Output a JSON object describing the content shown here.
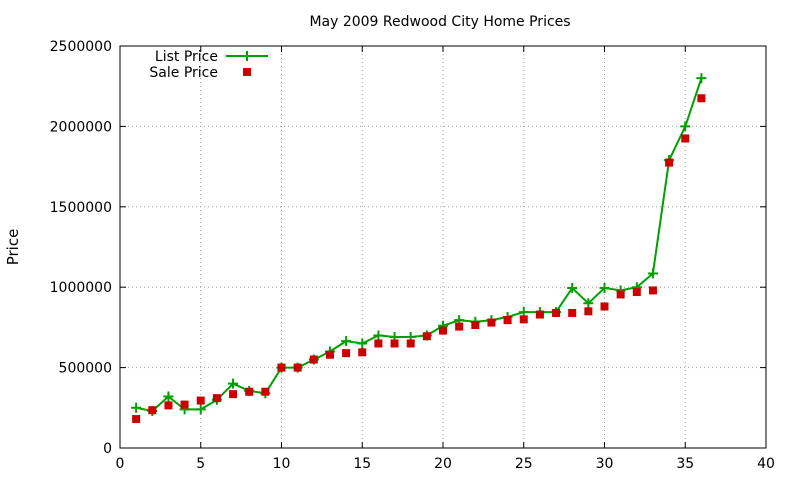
{
  "chart_data": {
    "type": "line",
    "title": "May 2009 Redwood City Home Prices",
    "xlabel": "",
    "ylabel": "Price",
    "xlim": [
      0,
      40
    ],
    "ylim": [
      0,
      2500000
    ],
    "x_ticks": [
      0,
      5,
      10,
      15,
      20,
      25,
      30,
      35,
      40
    ],
    "y_ticks": [
      0,
      500000,
      1000000,
      1500000,
      2000000,
      2500000
    ],
    "grid": true,
    "legend_position": "top-left",
    "series": [
      {
        "name": "List Price",
        "style": "line-with-plus-markers",
        "color": "#00a000",
        "x": [
          1,
          2,
          3,
          4,
          5,
          6,
          7,
          8,
          9,
          10,
          11,
          12,
          13,
          14,
          15,
          16,
          17,
          18,
          19,
          20,
          21,
          22,
          23,
          24,
          25,
          26,
          27,
          28,
          29,
          30,
          31,
          32,
          33,
          34,
          35,
          36
        ],
        "values": [
          250000,
          230000,
          320000,
          240000,
          240000,
          300000,
          400000,
          355000,
          340000,
          500000,
          500000,
          550000,
          600000,
          665000,
          650000,
          700000,
          690000,
          690000,
          700000,
          760000,
          795000,
          785000,
          795000,
          815000,
          845000,
          845000,
          845000,
          995000,
          900000,
          995000,
          980000,
          1000000,
          1085000,
          1790000,
          2000000,
          2300000
        ]
      },
      {
        "name": "Sale Price",
        "style": "square-markers",
        "color": "#cc0000",
        "x": [
          1,
          2,
          3,
          4,
          5,
          6,
          7,
          8,
          9,
          10,
          11,
          12,
          13,
          14,
          15,
          16,
          17,
          18,
          19,
          20,
          21,
          22,
          23,
          24,
          25,
          26,
          27,
          28,
          29,
          30,
          31,
          32,
          33,
          34,
          35,
          36
        ],
        "values": [
          180000,
          235000,
          265000,
          270000,
          295000,
          310000,
          335000,
          350000,
          350000,
          500000,
          500000,
          550000,
          580000,
          590000,
          595000,
          650000,
          650000,
          650000,
          695000,
          730000,
          755000,
          765000,
          780000,
          795000,
          800000,
          830000,
          840000,
          840000,
          850000,
          880000,
          955000,
          970000,
          980000,
          1775000,
          1925000,
          2175000
        ]
      }
    ]
  }
}
